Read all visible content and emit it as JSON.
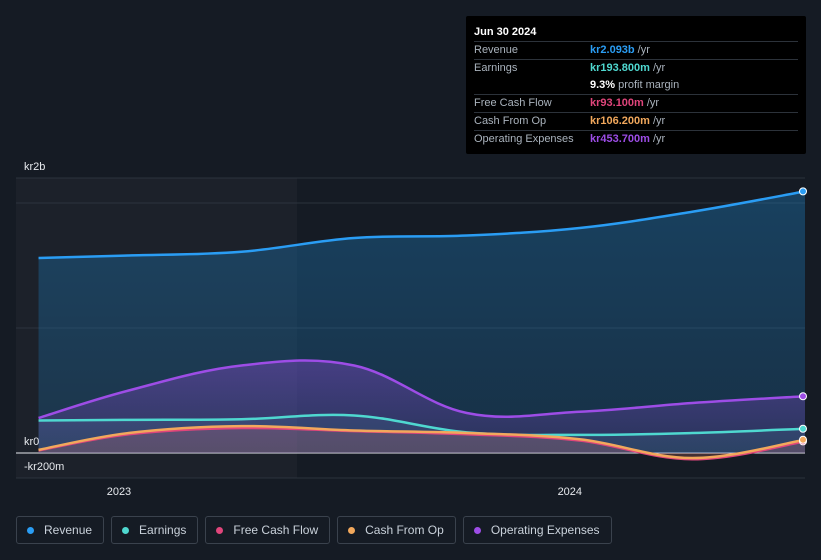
{
  "tooltip": {
    "date": "Jun 30 2024",
    "rows": [
      {
        "label": "Revenue",
        "value": "kr2.093b",
        "unit": "/yr",
        "color": "#2a9df4"
      },
      {
        "label": "Earnings",
        "value": "kr193.800m",
        "unit": "/yr",
        "color": "#4fd8d0"
      },
      {
        "label": "",
        "value": "9.3%",
        "unit": "profit margin",
        "color": "#ffffff"
      },
      {
        "label": "Free Cash Flow",
        "value": "kr93.100m",
        "unit": "/yr",
        "color": "#e0457b"
      },
      {
        "label": "Cash From Op",
        "value": "kr106.200m",
        "unit": "/yr",
        "color": "#f2a85c"
      },
      {
        "label": "Operating Expenses",
        "value": "kr453.700m",
        "unit": "/yr",
        "color": "#9d4de6"
      }
    ]
  },
  "legend": [
    {
      "label": "Revenue",
      "color": "#2a9df4"
    },
    {
      "label": "Earnings",
      "color": "#4fd8d0"
    },
    {
      "label": "Free Cash Flow",
      "color": "#e0457b"
    },
    {
      "label": "Cash From Op",
      "color": "#f2a85c"
    },
    {
      "label": "Operating Expenses",
      "color": "#9d4de6"
    }
  ],
  "chart_data": {
    "type": "area",
    "title": "",
    "xlabel": "",
    "ylabel": "",
    "y_tick_labels": [
      "kr2b",
      "kr0",
      "-kr200m"
    ],
    "x_tick_labels": [
      "2023",
      "2024"
    ],
    "xlim": [
      2022.75,
      2024.5
    ],
    "ylim": [
      -200,
      2200
    ],
    "x": [
      2022.75,
      2023.0,
      2023.25,
      2023.5,
      2023.75,
      2024.0,
      2024.25,
      2024.5
    ],
    "series": [
      {
        "name": "Revenue",
        "color": "#2a9df4",
        "values": [
          1560,
          1580,
          1610,
          1720,
          1740,
          1800,
          1930,
          2093
        ]
      },
      {
        "name": "Earnings",
        "color": "#4fd8d0",
        "values": [
          260,
          265,
          270,
          300,
          165,
          145,
          160,
          194
        ]
      },
      {
        "name": "Free Cash Flow",
        "color": "#e0457b",
        "values": [
          20,
          150,
          200,
          175,
          150,
          100,
          -50,
          93
        ]
      },
      {
        "name": "Cash From Op",
        "color": "#f2a85c",
        "values": [
          25,
          160,
          215,
          180,
          160,
          110,
          -40,
          106
        ]
      },
      {
        "name": "Operating Expenses",
        "color": "#9d4de6",
        "values": [
          280,
          500,
          700,
          700,
          320,
          330,
          400,
          454
        ]
      }
    ]
  }
}
